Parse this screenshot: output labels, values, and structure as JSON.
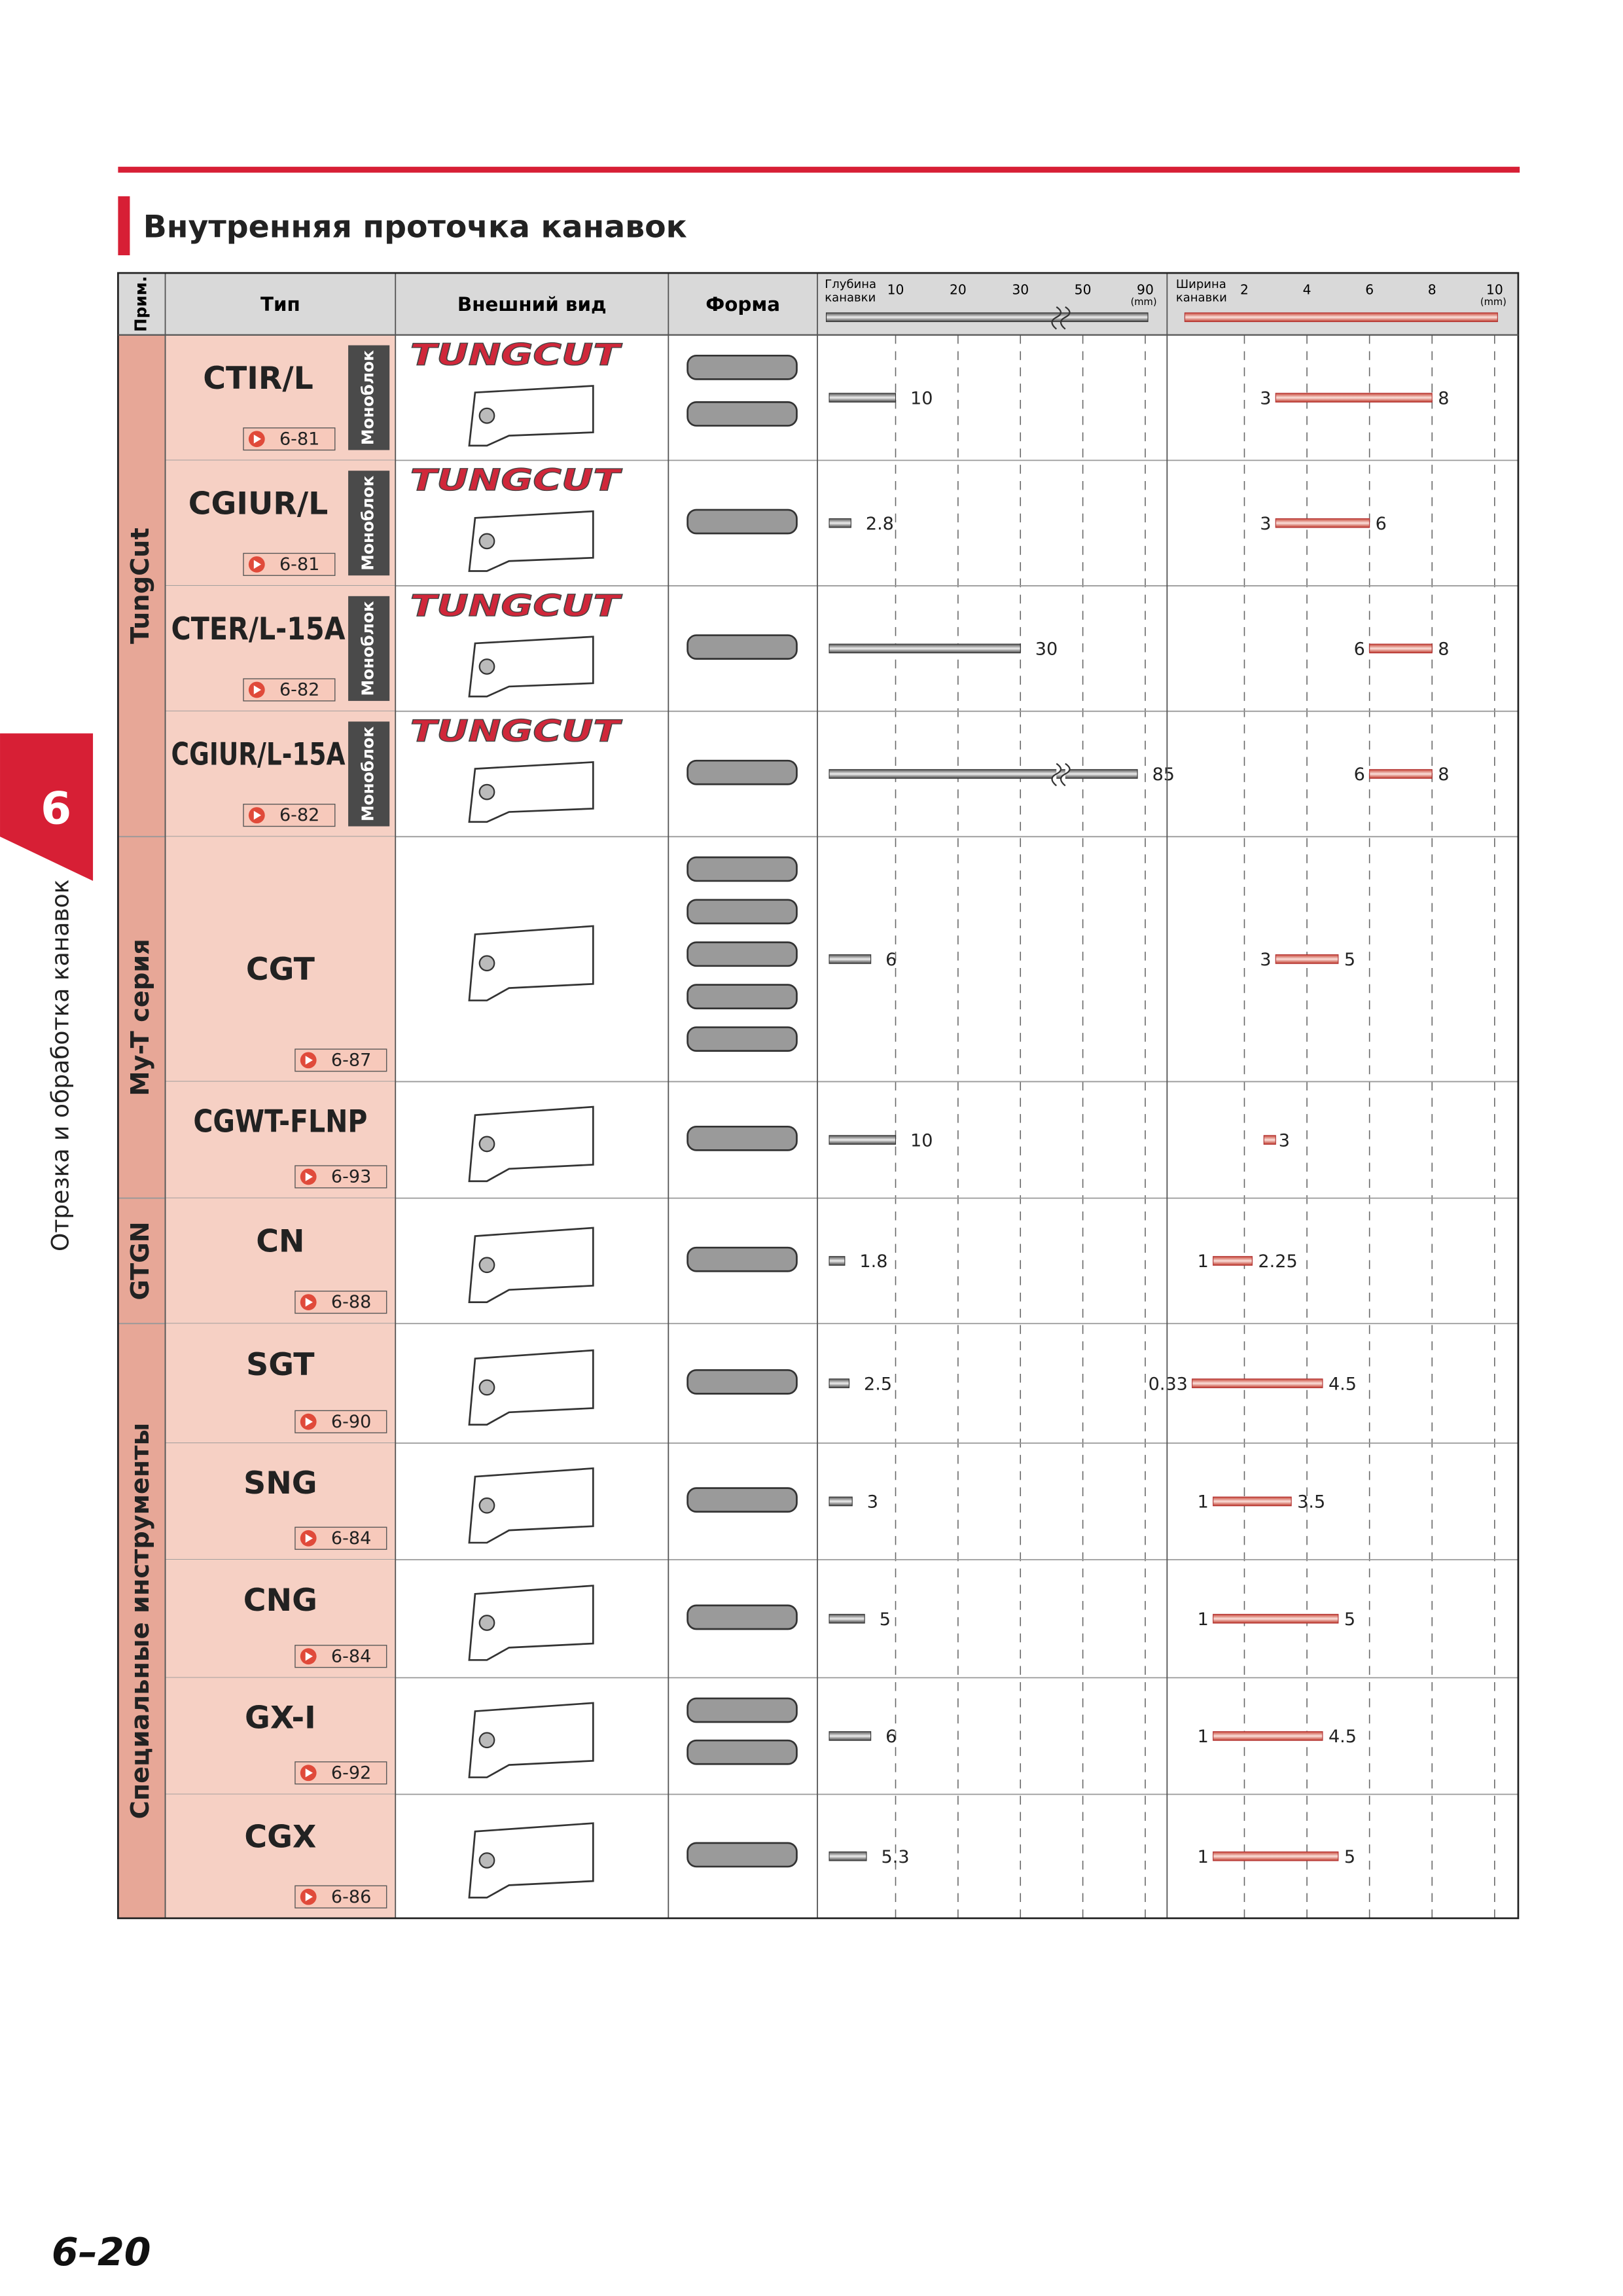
{
  "side_tab": {
    "number": "6",
    "label": "Отрезка и обработка канавок"
  },
  "header": {
    "title": "Внутренняя проточка канавок"
  },
  "table": {
    "columns": [
      "Прим.",
      "Тип",
      "Внешний вид",
      "Форма"
    ],
    "depth_axis": {
      "label": [
        "Глубина",
        "канавки"
      ],
      "unit": "(mm)",
      "ticks": [
        10,
        20,
        30,
        50,
        90
      ]
    },
    "width_axis": {
      "label": [
        "Ширина",
        "канавки"
      ],
      "unit": "(mm)",
      "ticks": [
        2,
        4,
        6,
        8,
        10
      ]
    },
    "groups": [
      {
        "name": "TungCut",
        "rows": [
          {
            "type": "CTIR/L",
            "page": "6-81",
            "note": "Моноблок",
            "brand": "TUNGCUT",
            "depth": 10,
            "width": [
              3,
              8
            ]
          },
          {
            "type": "CGIUR/L",
            "page": "6-81",
            "note": "Моноблок",
            "brand": "TUNGCUT",
            "depth": 2.8,
            "width": [
              3,
              6
            ]
          },
          {
            "type": "CTER/L-15A",
            "page": "6-82",
            "note": "Моноблок",
            "brand": "TUNGCUT",
            "depth": 30,
            "width": [
              6,
              8
            ]
          },
          {
            "type": "CGIUR/L-15A",
            "page": "6-82",
            "note": "Моноблок",
            "brand": "TUNGCUT",
            "depth": 85,
            "width": [
              6,
              8
            ]
          }
        ]
      },
      {
        "name": "My-T серия",
        "rows": [
          {
            "type": "CGT",
            "page": "6-87",
            "depth": 6,
            "width": [
              3,
              5
            ]
          },
          {
            "type": "CGWT-FLNP",
            "page": "6-93",
            "depth": 10,
            "width": [
              3
            ]
          }
        ]
      },
      {
        "name": "GTGN",
        "rows": [
          {
            "type": "CN",
            "page": "6-88",
            "depth": 1.8,
            "width": [
              1,
              2.25
            ]
          }
        ]
      },
      {
        "name": "Специальные инструменты",
        "rows": [
          {
            "type": "SGT",
            "page": "6-90",
            "depth": 2.5,
            "width": [
              0.33,
              4.5
            ]
          },
          {
            "type": "SNG",
            "page": "6-84",
            "depth": 3,
            "width": [
              1,
              3.5
            ]
          },
          {
            "type": "CNG",
            "page": "6-84",
            "depth": 5,
            "width": [
              1,
              5
            ]
          },
          {
            "type": "GX-I",
            "page": "6-92",
            "depth": 6,
            "width": [
              1,
              4.5
            ]
          },
          {
            "type": "CGX",
            "page": "6-86",
            "depth": 5.3,
            "width": [
              1,
              5
            ]
          }
        ]
      }
    ]
  },
  "footer": {
    "page_number": "6–20"
  }
}
